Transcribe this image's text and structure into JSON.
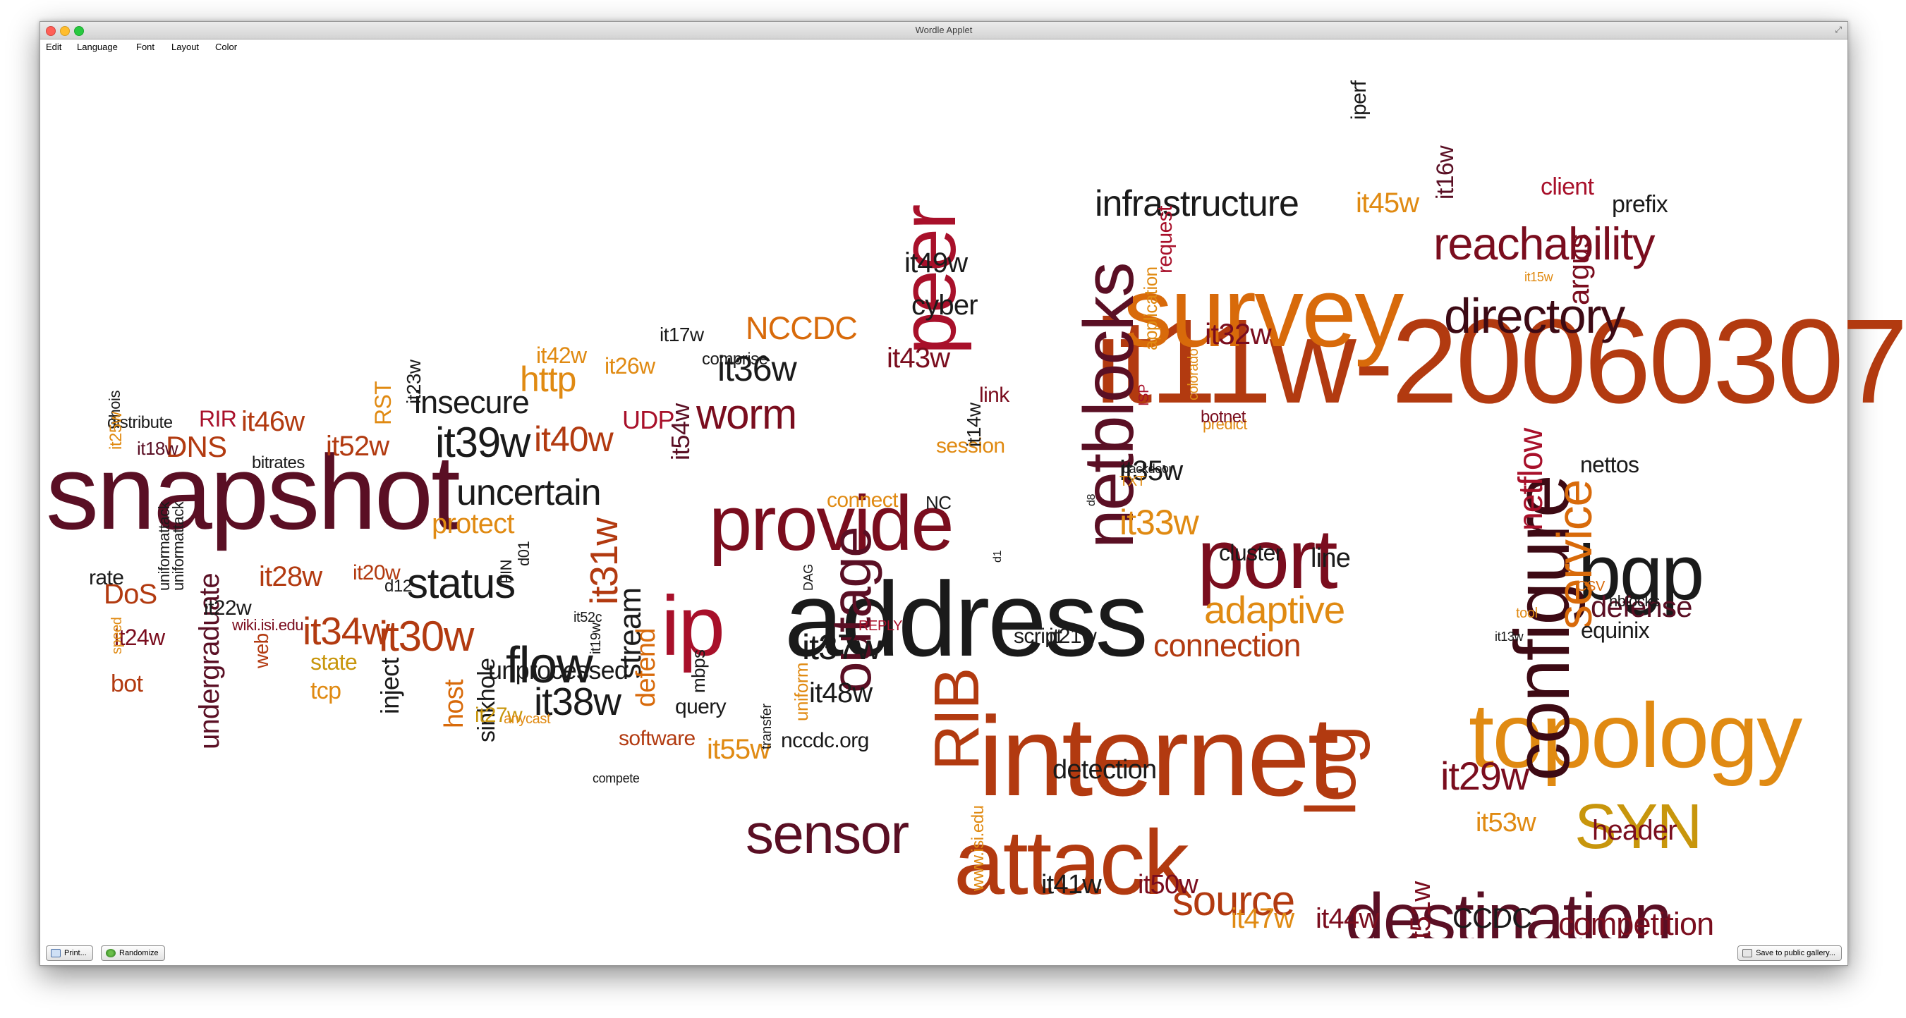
{
  "window": {
    "title": "Wordle Applet"
  },
  "menu": [
    "Edit",
    "Language",
    "Font",
    "Layout",
    "Color"
  ],
  "buttons": {
    "print": "Print...",
    "randomize": "Randomize",
    "save": "Save to public gallery..."
  },
  "palette": {
    "dark": "#3d0a14",
    "wine": "#7a0d1e",
    "maroon": "#5a0f24",
    "brick": "#b23a10",
    "orange": "#d86a0a",
    "amber": "#e08a12",
    "gold": "#c8960c",
    "black": "#1a1a1a",
    "red": "#a8102a"
  },
  "words": [
    {
      "t": "snapshot",
      "c": "maroon"
    },
    {
      "t": "it11w-20060307",
      "c": "brick"
    },
    {
      "t": "address",
      "c": "black"
    },
    {
      "t": "internet",
      "c": "brick"
    },
    {
      "t": "survey",
      "c": "orange"
    },
    {
      "t": "topology",
      "c": "amber"
    },
    {
      "t": "attack",
      "c": "brick"
    },
    {
      "t": "provide",
      "c": "wine"
    },
    {
      "t": "peer",
      "c": "red"
    },
    {
      "t": "netblocks",
      "c": "maroon"
    },
    {
      "t": "configure",
      "c": "dark"
    },
    {
      "t": "port",
      "c": "wine"
    },
    {
      "t": "destination",
      "c": "maroon"
    },
    {
      "t": "bgp",
      "c": "black"
    },
    {
      "t": "ip",
      "c": "red"
    },
    {
      "t": "RIB",
      "c": "brick"
    },
    {
      "t": "sensor",
      "c": "maroon"
    },
    {
      "t": "outage",
      "c": "maroon"
    },
    {
      "t": "log",
      "c": "brick"
    },
    {
      "t": "SYN",
      "c": "gold"
    },
    {
      "t": "reachability",
      "c": "wine"
    },
    {
      "t": "directory",
      "c": "dark"
    },
    {
      "t": "infrastructure",
      "c": "black"
    },
    {
      "t": "service",
      "c": "orange"
    },
    {
      "t": "flow",
      "c": "black"
    },
    {
      "t": "status",
      "c": "black"
    },
    {
      "t": "uncertain",
      "c": "black"
    },
    {
      "t": "worm",
      "c": "wine"
    },
    {
      "t": "source",
      "c": "brick"
    },
    {
      "t": "adaptive",
      "c": "amber"
    },
    {
      "t": "it39w",
      "c": "black"
    },
    {
      "t": "it38w",
      "c": "black"
    },
    {
      "t": "it30w",
      "c": "brick"
    },
    {
      "t": "it34w",
      "c": "brick"
    },
    {
      "t": "it31w",
      "c": "brick"
    },
    {
      "t": "it29w",
      "c": "wine"
    },
    {
      "t": "it36w",
      "c": "black"
    },
    {
      "t": "it37w",
      "c": "black"
    },
    {
      "t": "it40w",
      "c": "brick"
    },
    {
      "t": "insecure",
      "c": "black"
    },
    {
      "t": "http",
      "c": "amber"
    },
    {
      "t": "NCCDC",
      "c": "orange"
    },
    {
      "t": "connection",
      "c": "brick"
    },
    {
      "t": "competition",
      "c": "wine"
    },
    {
      "t": "header",
      "c": "wine"
    },
    {
      "t": "defense",
      "c": "maroon"
    },
    {
      "t": "netflow",
      "c": "red"
    },
    {
      "t": "argus",
      "c": "wine"
    },
    {
      "t": "it32w",
      "c": "wine"
    },
    {
      "t": "it33w",
      "c": "amber"
    },
    {
      "t": "it35w",
      "c": "black"
    },
    {
      "t": "it41w",
      "c": "black"
    },
    {
      "t": "it50w",
      "c": "wine"
    },
    {
      "t": "it47w",
      "c": "amber"
    },
    {
      "t": "it44w",
      "c": "wine"
    },
    {
      "t": "it51w",
      "c": "wine"
    },
    {
      "t": "CCDC",
      "c": "black"
    },
    {
      "t": "it28w",
      "c": "brick"
    },
    {
      "t": "it46w",
      "c": "brick"
    },
    {
      "t": "it52w",
      "c": "brick"
    },
    {
      "t": "DNS",
      "c": "brick"
    },
    {
      "t": "DoS",
      "c": "brick"
    },
    {
      "t": "stream",
      "c": "black"
    },
    {
      "t": "protect",
      "c": "amber"
    },
    {
      "t": "it48w",
      "c": "black"
    },
    {
      "t": "it49w",
      "c": "black"
    },
    {
      "t": "cyber",
      "c": "black"
    },
    {
      "t": "it43w",
      "c": "wine"
    },
    {
      "t": "it45w",
      "c": "amber"
    },
    {
      "t": "it53w",
      "c": "amber"
    },
    {
      "t": "it55w",
      "c": "amber"
    },
    {
      "t": "detection",
      "c": "black"
    },
    {
      "t": "prefix",
      "c": "black"
    },
    {
      "t": "client",
      "c": "red"
    },
    {
      "t": "it16w",
      "c": "maroon"
    },
    {
      "t": "equinix",
      "c": "black"
    },
    {
      "t": "line",
      "c": "black"
    },
    {
      "t": "cluster",
      "c": "black"
    },
    {
      "t": "nettos",
      "c": "black"
    },
    {
      "t": "undergraduate",
      "c": "maroon"
    },
    {
      "t": "inject",
      "c": "black"
    },
    {
      "t": "unprocessed",
      "c": "black"
    },
    {
      "t": "host",
      "c": "orange"
    },
    {
      "t": "sinkhole",
      "c": "black"
    },
    {
      "t": "defend",
      "c": "orange"
    },
    {
      "t": "query",
      "c": "black"
    },
    {
      "t": "software",
      "c": "brick"
    },
    {
      "t": "nccdc.org",
      "c": "black"
    },
    {
      "t": "tcp",
      "c": "amber"
    },
    {
      "t": "state",
      "c": "gold"
    },
    {
      "t": "UDP",
      "c": "red"
    },
    {
      "t": "it54w",
      "c": "maroon"
    },
    {
      "t": "it17w",
      "c": "black"
    },
    {
      "t": "comprise",
      "c": "black"
    },
    {
      "t": "it42w",
      "c": "amber"
    },
    {
      "t": "it26w",
      "c": "amber"
    },
    {
      "t": "RST",
      "c": "amber"
    },
    {
      "t": "it23w",
      "c": "black"
    },
    {
      "t": "RIR",
      "c": "red"
    },
    {
      "t": "distribute",
      "c": "black"
    },
    {
      "t": "whois",
      "c": "black"
    },
    {
      "t": "it25w",
      "c": "amber"
    },
    {
      "t": "it18w",
      "c": "maroon"
    },
    {
      "t": "bitrates",
      "c": "black"
    },
    {
      "t": "rate",
      "c": "black"
    },
    {
      "t": "uniformattack",
      "c": "black"
    },
    {
      "t": "it22w",
      "c": "black"
    },
    {
      "t": "it24w",
      "c": "wine"
    },
    {
      "t": "speed",
      "c": "amber"
    },
    {
      "t": "uniformattack",
      "c": "black"
    },
    {
      "t": "bot",
      "c": "brick"
    },
    {
      "t": "web",
      "c": "brick"
    },
    {
      "t": "wiki.isi.edu",
      "c": "wine"
    },
    {
      "t": "it20w",
      "c": "brick"
    },
    {
      "t": "d12",
      "c": "black"
    },
    {
      "t": "FIN",
      "c": "black"
    },
    {
      "t": "d01",
      "c": "black"
    },
    {
      "t": "it27w",
      "c": "gold"
    },
    {
      "t": "anycast",
      "c": "amber"
    },
    {
      "t": "it52c",
      "c": "black"
    },
    {
      "t": "it19w",
      "c": "black"
    },
    {
      "t": "mbps",
      "c": "black"
    },
    {
      "t": "compete",
      "c": "black"
    },
    {
      "t": "transfer",
      "c": "black"
    },
    {
      "t": "uniform",
      "c": "amber"
    },
    {
      "t": "connect",
      "c": "amber"
    },
    {
      "t": "NC",
      "c": "black"
    },
    {
      "t": "REPLY",
      "c": "red"
    },
    {
      "t": "DAG",
      "c": "black"
    },
    {
      "t": "d1",
      "c": "black"
    },
    {
      "t": "script",
      "c": "black"
    },
    {
      "t": "it21w",
      "c": "black"
    },
    {
      "t": "session",
      "c": "amber"
    },
    {
      "t": "link",
      "c": "wine"
    },
    {
      "t": "it14w",
      "c": "black"
    },
    {
      "t": "d8",
      "c": "black"
    },
    {
      "t": "backdoor",
      "c": "black"
    },
    {
      "t": "www.isi.edu",
      "c": "amber"
    },
    {
      "t": "TXT",
      "c": "amber"
    },
    {
      "t": "ISP",
      "c": "red"
    },
    {
      "t": "colorado",
      "c": "amber"
    },
    {
      "t": "predict",
      "c": "amber"
    },
    {
      "t": "botnet",
      "c": "wine"
    },
    {
      "t": "application",
      "c": "amber"
    },
    {
      "t": "request",
      "c": "red"
    },
    {
      "t": "iperf",
      "c": "black"
    },
    {
      "t": "it15w",
      "c": "amber"
    },
    {
      "t": "tool",
      "c": "amber"
    },
    {
      "t": "it13w",
      "c": "black"
    },
    {
      "t": "nblocks",
      "c": "black"
    },
    {
      "t": "CSV",
      "c": "orange"
    }
  ]
}
